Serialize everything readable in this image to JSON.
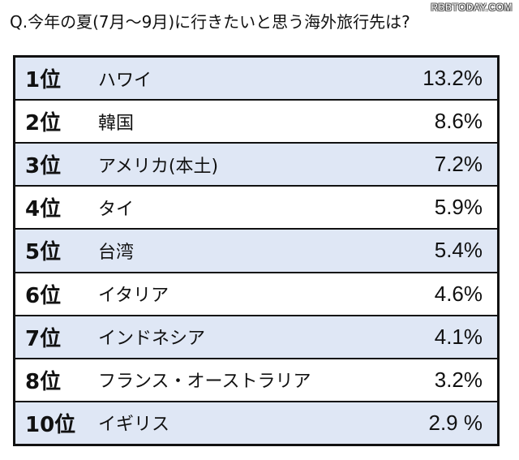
{
  "watermark": "RBBTODAY.COM",
  "question": "Q.今年の夏(7月〜9月)に行きたいと思う海外旅行先は?",
  "chart_data": {
    "type": "table",
    "title": "Q.今年の夏(7月〜9月)に行きたいと思う海外旅行先は?",
    "rows": [
      {
        "rank": "1位",
        "country": "ハワイ",
        "percent": "13.2%"
      },
      {
        "rank": "2位",
        "country": "韓国",
        "percent": "8.6%"
      },
      {
        "rank": "3位",
        "country": "アメリカ(本土)",
        "percent": "7.2%"
      },
      {
        "rank": "4位",
        "country": "タイ",
        "percent": "5.9%"
      },
      {
        "rank": "5位",
        "country": "台湾",
        "percent": "5.4%"
      },
      {
        "rank": "6位",
        "country": "イタリア",
        "percent": "4.6%"
      },
      {
        "rank": "7位",
        "country": "インドネシア",
        "percent": "4.1%"
      },
      {
        "rank": "8位",
        "country": "フランス・オーストラリア",
        "percent": "3.2%"
      },
      {
        "rank": "10位",
        "country": "イギリス",
        "percent": "2.9 %"
      }
    ],
    "values": [
      13.2,
      8.6,
      7.2,
      5.9,
      5.4,
      4.6,
      4.1,
      3.2,
      2.9
    ],
    "colors": {
      "shaded_row": "#dfe7f5",
      "plain_row": "#ffffff",
      "border": "#111111"
    }
  }
}
